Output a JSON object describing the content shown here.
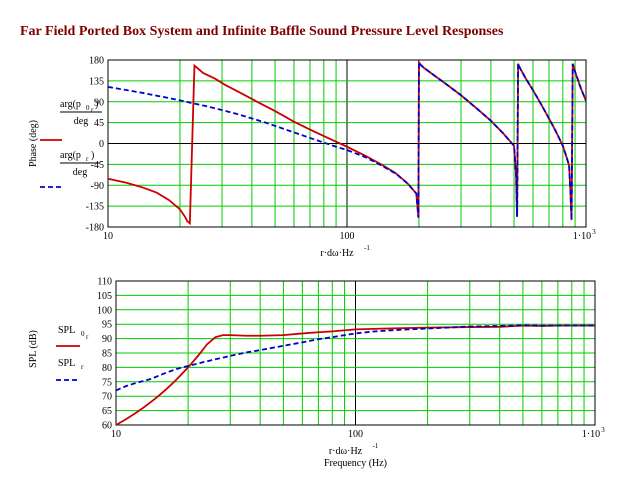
{
  "page_title": "Far Field Ported Box System and Infinite Baffle Sound Pressure Level Responses",
  "chart_data": [
    {
      "type": "line",
      "xscale": "log",
      "xlim": [
        10,
        1000
      ],
      "ylim": [
        -180,
        180
      ],
      "yticks": [
        "180",
        "135",
        "90",
        "45",
        "0",
        "-45",
        "-90",
        "-135",
        "-180"
      ],
      "xticks": [
        "10",
        "100"
      ],
      "xtick_end": "1·10",
      "xtick_end_exp": "3",
      "ylabel": "Phase (deg)",
      "xlabel": "r·dω·Hz",
      "xlabel_exp": "-1",
      "grid": true,
      "legend": [
        {
          "num": "arg(p",
          "sub": "0",
          "sub2": "r",
          "close": ")",
          "den": "deg",
          "color": "#cc0000",
          "dash": "solid"
        },
        {
          "num": "arg(p",
          "sub": "r",
          "sub2": "",
          "close": ")",
          "den": "deg",
          "color": "#0000cc",
          "dash": "dashed"
        }
      ],
      "series": [
        {
          "color": "#cc0000",
          "dash": "solid",
          "x": [
            10,
            12,
            14,
            16,
            18,
            20,
            21,
            21.5,
            22,
            23,
            25,
            28,
            31,
            35,
            40,
            45,
            50,
            60,
            70,
            80,
            90,
            100,
            120,
            140,
            160,
            180,
            195,
            199,
            200,
            203,
            210,
            230,
            260,
            300,
            350,
            400,
            450,
            500,
            510,
            515,
            520,
            530,
            560,
            600,
            650,
            700,
            750,
            800,
            830,
            850,
            860,
            870,
            880,
            900,
            950,
            1000
          ],
          "y": [
            -76,
            -85,
            -95,
            -106,
            -122,
            -142,
            -158,
            -168,
            -172,
            168,
            152,
            140,
            126,
            112,
            96,
            82,
            70,
            47,
            30,
            16,
            4,
            -7,
            -27,
            -46,
            -64,
            -87,
            -108,
            -160,
            175,
            170,
            163,
            148,
            128,
            104,
            75,
            49,
            22,
            -5,
            -70,
            -158,
            172,
            162,
            140,
            115,
            84,
            54,
            25,
            -5,
            -30,
            -48,
            -100,
            -165,
            172,
            155,
            120,
            92
          ]
        },
        {
          "color": "#0000cc",
          "dash": "dashed",
          "x": [
            10,
            12,
            14,
            16,
            18,
            20,
            22,
            25,
            28,
            31,
            35,
            40,
            45,
            50,
            60,
            70,
            80,
            90,
            100,
            120,
            140,
            160,
            180,
            195,
            199,
            200,
            203,
            210,
            230,
            260,
            300,
            350,
            400,
            450,
            500,
            510,
            515,
            520,
            530,
            560,
            600,
            650,
            700,
            750,
            800,
            830,
            850,
            860,
            870,
            880,
            900,
            950,
            1000
          ],
          "y": [
            122,
            115,
            109,
            103,
            98,
            93,
            88,
            82,
            76,
            70,
            63,
            54,
            46,
            38,
            24,
            12,
            2,
            -7,
            -14,
            -30,
            -48,
            -65,
            -87,
            -108,
            -160,
            175,
            170,
            163,
            148,
            128,
            104,
            75,
            49,
            22,
            -5,
            -70,
            -158,
            172,
            162,
            140,
            115,
            84,
            54,
            25,
            -5,
            -30,
            -48,
            -100,
            -165,
            172,
            155,
            120,
            92
          ]
        }
      ]
    },
    {
      "type": "line",
      "xscale": "log",
      "xlim": [
        10,
        1000
      ],
      "ylim": [
        60,
        110
      ],
      "yticks": [
        "110",
        "105",
        "100",
        "95",
        "90",
        "85",
        "80",
        "75",
        "70",
        "65",
        "60"
      ],
      "xticks": [
        "10",
        "100"
      ],
      "xtick_end": "1·10",
      "xtick_end_exp": "3",
      "ylabel": "SPL (dB)",
      "xlabel": "r·dω·Hz",
      "xlabel_exp": "-1",
      "xlabel2": "Frequency (Hz)",
      "grid": true,
      "legend": [
        {
          "name": "SPL",
          "sub": "0",
          "sub2": "r",
          "color": "#cc0000",
          "dash": "solid"
        },
        {
          "name": "SPL",
          "sub": "r",
          "sub2": "",
          "color": "#0000cc",
          "dash": "dashed"
        }
      ],
      "series": [
        {
          "color": "#cc0000",
          "dash": "solid",
          "x": [
            10,
            11,
            12,
            13,
            14,
            15,
            16,
            17,
            18,
            20,
            22,
            24,
            26,
            28,
            30,
            35,
            40,
            50,
            60,
            70,
            80,
            100,
            150,
            200,
            300,
            400,
            500,
            600,
            700,
            800,
            1000
          ],
          "y": [
            60,
            62,
            64,
            66,
            68,
            70,
            72,
            74,
            76,
            80,
            84,
            88,
            90.5,
            91.2,
            91.2,
            91,
            91,
            91.2,
            91.8,
            92.2,
            92.5,
            93.2,
            93.6,
            93.8,
            94,
            94.1,
            94.5,
            94.4,
            94.5,
            94.5,
            94.5
          ]
        },
        {
          "color": "#0000cc",
          "dash": "dashed",
          "x": [
            10,
            11,
            12,
            14,
            16,
            18,
            20,
            25,
            30,
            35,
            40,
            50,
            60,
            70,
            80,
            100,
            120,
            150,
            200,
            300,
            400,
            500,
            600,
            700,
            800,
            1000
          ],
          "y": [
            72,
            73.5,
            74.5,
            76,
            78,
            79.5,
            80.5,
            82.5,
            84,
            85.2,
            86,
            87.5,
            88.7,
            89.8,
            90.5,
            91.8,
            92.5,
            93,
            93.5,
            94.2,
            94.4,
            94.6,
            94.5,
            94.5,
            94.5,
            94.5
          ]
        }
      ]
    }
  ]
}
